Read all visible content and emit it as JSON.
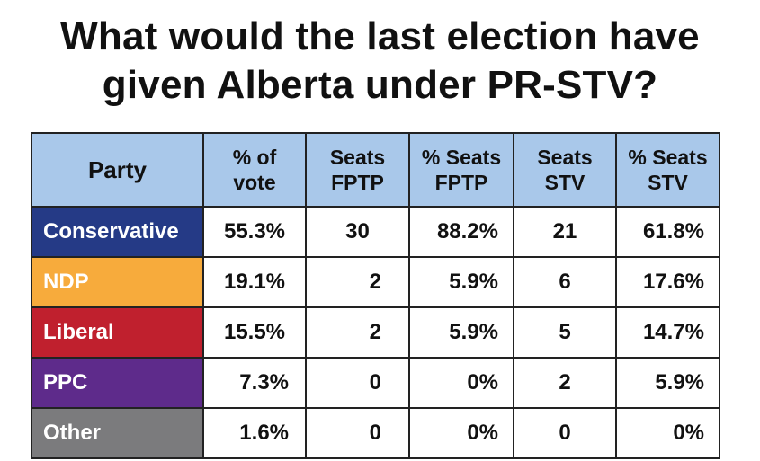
{
  "title": {
    "line1": "What would the last election have",
    "line2": "given Alberta under PR-STV?"
  },
  "table": {
    "headers": {
      "party": "Party",
      "vote_line1": "% of",
      "vote_line2": "vote",
      "seats_fptp_line1": "Seats",
      "seats_fptp_line2": "FPTP",
      "pct_fptp_line1": "% Seats",
      "pct_fptp_line2": "FPTP",
      "seats_stv_line1": "Seats",
      "seats_stv_line2": "STV",
      "pct_stv_line1": "% Seats",
      "pct_stv_line2": "STV"
    },
    "rows": [
      {
        "party": "Conservative",
        "color": "#253a86",
        "vote": "55.3%",
        "seats_fptp": "30",
        "pct_fptp": "88.2%",
        "seats_stv": "21",
        "pct_stv": "61.8%"
      },
      {
        "party": "NDP",
        "color": "#f7ab3c",
        "vote": "19.1%",
        "seats_fptp": "2",
        "pct_fptp": "5.9%",
        "seats_stv": "6",
        "pct_stv": "17.6%"
      },
      {
        "party": "Liberal",
        "color": "#c0202e",
        "vote": "15.5%",
        "seats_fptp": "2",
        "pct_fptp": "5.9%",
        "seats_stv": "5",
        "pct_stv": "14.7%"
      },
      {
        "party": "PPC",
        "color": "#5e2b8b",
        "vote": "7.3%",
        "seats_fptp": "0",
        "pct_fptp": "0%",
        "seats_stv": "2",
        "pct_stv": "5.9%"
      },
      {
        "party": "Other",
        "color": "#7b7b7d",
        "vote": "1.6%",
        "seats_fptp": "0",
        "pct_fptp": "0%",
        "seats_stv": "0",
        "pct_stv": "0%"
      }
    ]
  }
}
